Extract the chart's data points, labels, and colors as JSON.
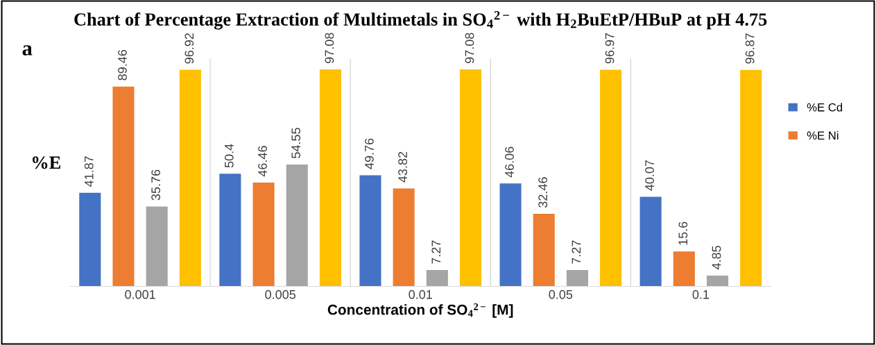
{
  "chart_data": {
    "type": "bar",
    "title": "Chart of Percentage Extraction of Multimetals in SO$_{4}$$^{2−}$ with H$_{2}$BuEtP/HBuP at pH 4.75",
    "xlabel": "Concentration of SO$_{4}$$^{2−}$ [M]",
    "ylabel": "%E",
    "annotations": [
      "a"
    ],
    "categories": [
      "0.001",
      "0.005",
      "0.01",
      "0.05",
      "0.1"
    ],
    "series": [
      {
        "name": "%E Cd",
        "color": "#4472c4",
        "values": [
          41.87,
          50.4,
          49.76,
          46.06,
          40.07
        ]
      },
      {
        "name": "%E Ni",
        "color": "#ed7d31",
        "values": [
          89.46,
          46.46,
          43.82,
          32.46,
          15.6
        ]
      },
      {
        "color": "#a5a5a5",
        "values": [
          35.76,
          54.55,
          7.27,
          7.27,
          4.85
        ]
      },
      {
        "color": "#ffc000",
        "values": [
          96.92,
          97.08,
          97.08,
          96.97,
          96.87
        ]
      }
    ],
    "data_labels": true,
    "tick_labels": "x",
    "legend": "right",
    "grid": false
  }
}
